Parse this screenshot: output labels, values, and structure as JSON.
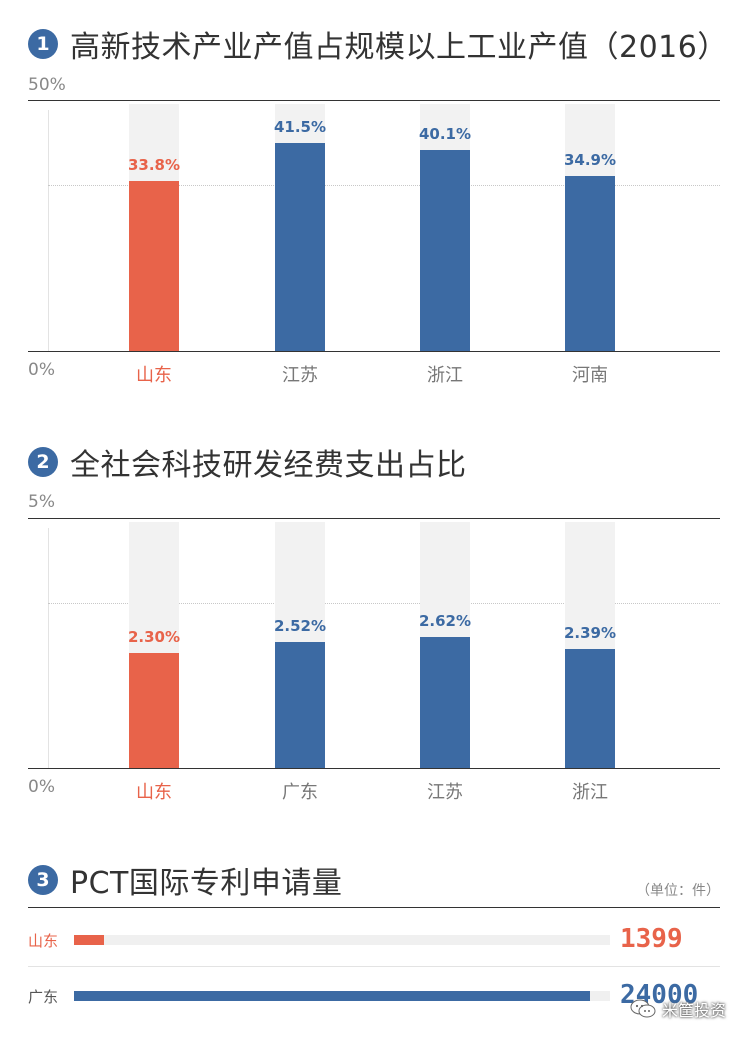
{
  "colors": {
    "highlight": "#e8634a",
    "primary": "#3c6aa3",
    "track": "#f2f2f2"
  },
  "section1": {
    "number": "1",
    "title": "高新技术产业产值占规模以上工业产值（2016）",
    "ymax_label": "50%",
    "ymin_label": "0%"
  },
  "section2": {
    "number": "2",
    "title": "全社会科技研发经费支出占比",
    "ymax_label": "5%",
    "ymin_label": "0%"
  },
  "section3": {
    "number": "3",
    "title": "PCT国际专利申请量",
    "unit": "（单位：件）"
  },
  "watermark": {
    "text": "米筐投资"
  },
  "chart_data": [
    {
      "type": "bar",
      "title": "高新技术产业产值占规模以上工业产值（2016）",
      "categories": [
        "山东",
        "江苏",
        "浙江",
        "河南"
      ],
      "values": [
        33.8,
        41.5,
        40.1,
        34.9
      ],
      "value_labels": [
        "33.8%",
        "41.5%",
        "40.1%",
        "34.9%"
      ],
      "ylim": [
        0,
        50
      ],
      "highlight_index": 0,
      "grid": true
    },
    {
      "type": "bar",
      "title": "全社会科技研发经费支出占比",
      "categories": [
        "山东",
        "广东",
        "江苏",
        "浙江"
      ],
      "values": [
        2.3,
        2.52,
        2.62,
        2.39
      ],
      "value_labels": [
        "2.30%",
        "2.52%",
        "2.62%",
        "2.39%"
      ],
      "ylim": [
        0,
        5
      ],
      "highlight_index": 0,
      "grid": true
    },
    {
      "type": "bar",
      "orientation": "horizontal",
      "title": "PCT国际专利申请量",
      "categories": [
        "山东",
        "广东"
      ],
      "values": [
        1399,
        24000
      ],
      "value_labels": [
        "1399",
        "24000"
      ],
      "xlim": [
        0,
        24000
      ],
      "highlight_index": 0
    }
  ]
}
